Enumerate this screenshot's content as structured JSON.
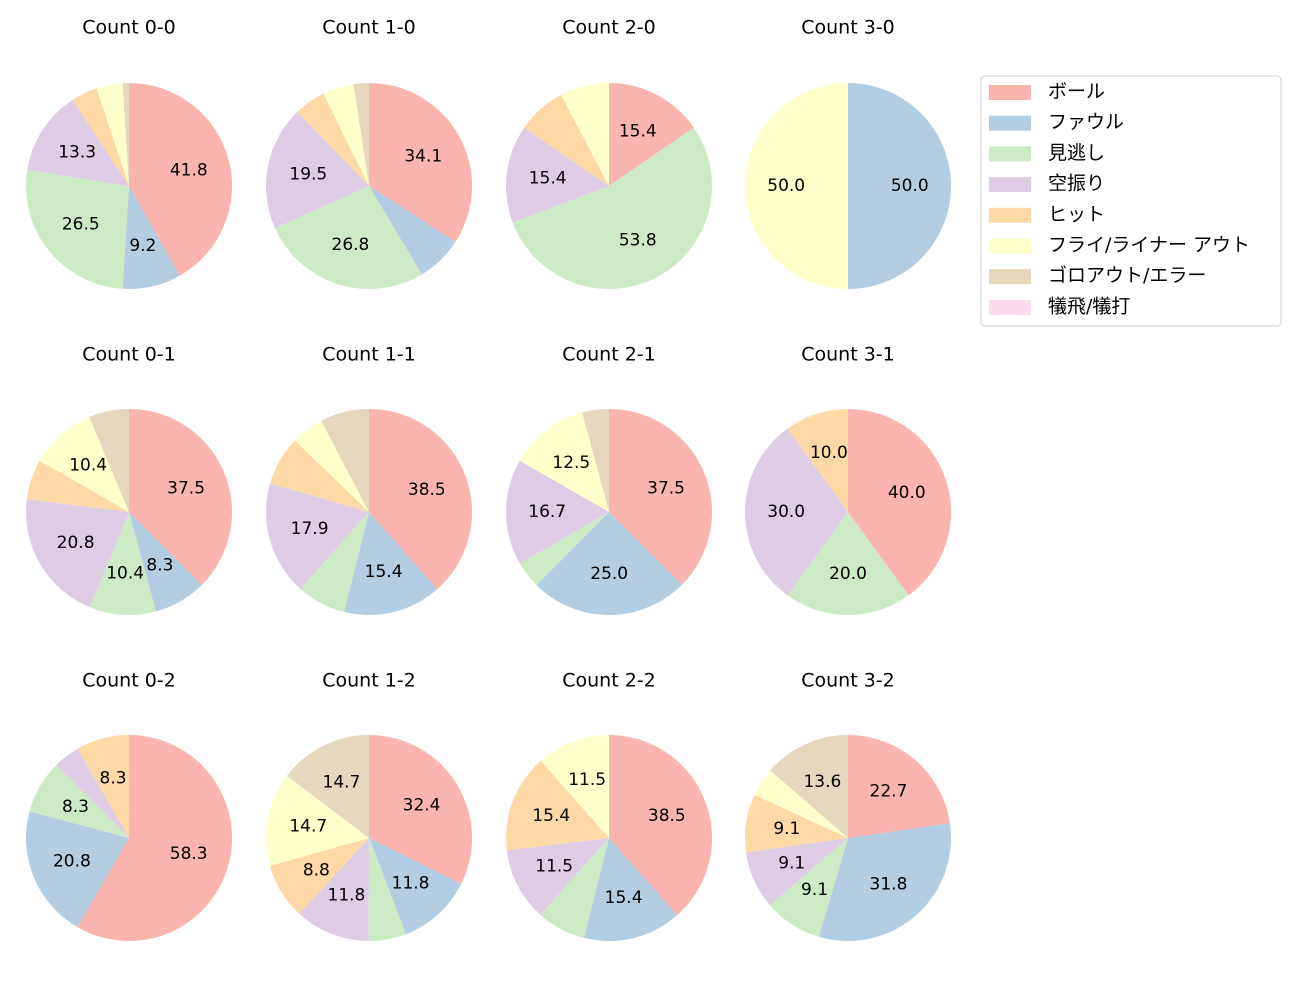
{
  "legend": {
    "labels": [
      "ボール",
      "ファウル",
      "見逃し",
      "空振り",
      "ヒット",
      "フライ/ライナー アウト",
      "ゴロアウト/エラー",
      "犠飛/犠打"
    ],
    "colors": [
      "#fbb4ae",
      "#b3cde3",
      "#ccebc5",
      "#decbe4",
      "#fed9a6",
      "#ffffcc",
      "#e5d8bd",
      "#fddaec"
    ]
  },
  "chart_data": [
    {
      "type": "pie",
      "title": "Count 0-0",
      "values": [
        41.8,
        9.2,
        26.5,
        13.3,
        4.1,
        4.1,
        1.0,
        0
      ],
      "value_labels": [
        "41.8",
        "9.2",
        "26.5",
        "13.3",
        null,
        null,
        null,
        null
      ]
    },
    {
      "type": "pie",
      "title": "Count 1-0",
      "values": [
        34.1,
        7.3,
        26.8,
        19.5,
        4.9,
        4.9,
        2.4,
        0
      ],
      "value_labels": [
        "34.1",
        null,
        "26.8",
        "19.5",
        null,
        null,
        null,
        null
      ]
    },
    {
      "type": "pie",
      "title": "Count 2-0",
      "values": [
        15.4,
        0,
        53.8,
        15.4,
        7.7,
        7.7,
        0,
        0
      ],
      "value_labels": [
        "15.4",
        null,
        "53.8",
        "15.4",
        null,
        null,
        null,
        null
      ]
    },
    {
      "type": "pie",
      "title": "Count 3-0",
      "values": [
        0,
        50,
        0,
        0,
        0,
        50,
        0,
        0
      ],
      "value_labels": [
        null,
        "50.0",
        null,
        null,
        null,
        "50.0",
        null,
        null
      ]
    },
    {
      "type": "pie",
      "title": "Count 0-1",
      "values": [
        37.5,
        8.3,
        10.4,
        20.8,
        6.3,
        10.4,
        6.3,
        0
      ],
      "value_labels": [
        "37.5",
        "8.3",
        "10.4",
        "20.8",
        null,
        "10.4",
        null,
        null
      ]
    },
    {
      "type": "pie",
      "title": "Count 1-1",
      "values": [
        38.5,
        15.4,
        7.7,
        17.9,
        7.7,
        5.1,
        7.7,
        0
      ],
      "value_labels": [
        "38.5",
        "15.4",
        null,
        "17.9",
        null,
        null,
        null,
        null
      ]
    },
    {
      "type": "pie",
      "title": "Count 2-1",
      "values": [
        37.5,
        25,
        4.2,
        16.7,
        0,
        12.5,
        4.2,
        0
      ],
      "value_labels": [
        "37.5",
        "25.0",
        null,
        "16.7",
        null,
        "12.5",
        null,
        null
      ]
    },
    {
      "type": "pie",
      "title": "Count 3-1",
      "values": [
        40,
        0,
        20,
        30,
        10,
        0,
        0,
        0
      ],
      "value_labels": [
        "40.0",
        null,
        "20.0",
        "30.0",
        "10.0",
        null,
        null,
        null
      ]
    },
    {
      "type": "pie",
      "title": "Count 0-2",
      "values": [
        58.3,
        20.8,
        8.3,
        4.2,
        8.3,
        0,
        0,
        0
      ],
      "value_labels": [
        "58.3",
        "20.8",
        "8.3",
        null,
        "8.3",
        null,
        null,
        null
      ]
    },
    {
      "type": "pie",
      "title": "Count 1-2",
      "values": [
        32.4,
        11.8,
        5.9,
        11.8,
        8.8,
        14.7,
        14.7,
        0
      ],
      "value_labels": [
        "32.4",
        "11.8",
        null,
        "11.8",
        "8.8",
        "14.7",
        "14.7",
        null
      ]
    },
    {
      "type": "pie",
      "title": "Count 2-2",
      "values": [
        38.5,
        15.4,
        7.7,
        11.5,
        15.4,
        11.5,
        0,
        0
      ],
      "value_labels": [
        "38.5",
        "15.4",
        null,
        "11.5",
        "15.4",
        "11.5",
        null,
        null
      ]
    },
    {
      "type": "pie",
      "title": "Count 3-2",
      "values": [
        22.7,
        31.8,
        9.1,
        9.1,
        9.1,
        4.5,
        13.6,
        0
      ],
      "value_labels": [
        "22.7",
        "31.8",
        "9.1",
        "9.1",
        "9.1",
        null,
        "13.6",
        null
      ]
    }
  ]
}
